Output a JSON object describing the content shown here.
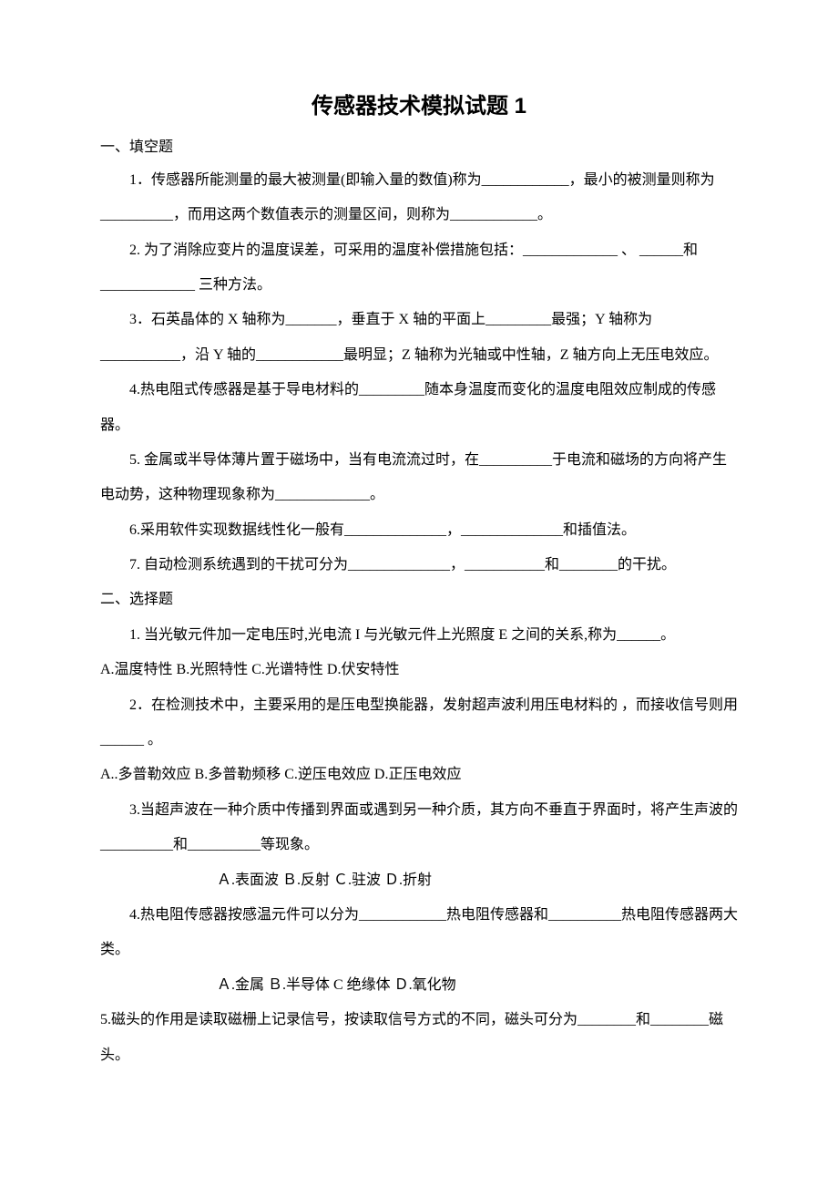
{
  "title": "传感器技术模拟试题 1",
  "sec1_head": "一、填空题",
  "q1_1": "1．传感器所能测量的最大被测量(即输入量的数值)称为____________，最小的被测量则称为__________，而用这两个数值表示的测量区间，则称为____________。",
  "q1_2": "2. 为了消除应变片的温度误差，可采用的温度补偿措施包括：_____________ 、 ______和_____________ 三种方法。",
  "q1_3": "3．石英晶体的 X 轴称为_______，垂直于 X 轴的平面上_________最强；Y 轴称为___________，沿 Y 轴的____________最明显；Z 轴称为光轴或中性轴，Z 轴方向上无压电效应。",
  "q1_4": "4.热电阻式传感器是基于导电材料的_________随本身温度而变化的温度电阻效应制成的传感器。",
  "q1_5": "5. 金属或半导体薄片置于磁场中，当有电流流过时，在__________于电流和磁场的方向将产生电动势，这种物理现象称为_____________。",
  "q1_6": "6.采用软件实现数据线性化一般有______________，______________和插值法。",
  "q1_7": "7. 自动检测系统遇到的干扰可分为______________，___________和________的干扰。",
  "sec2_head": "二、选择题",
  "q2_1": "1. 当光敏元件加一定电压时,光电流 I 与光敏元件上光照度 E 之间的关系,称为______。",
  "q2_1_opts": "A.温度特性   B.光照特性   C.光谱特性   D.伏安特性",
  "q2_2": "2．在检测技术中，主要采用的是压电型换能器，发射超声波利用压电材料的       ，而接收信号则用______ 。",
  "q2_2_opts": "A..多普勒效应   B.多普勒频移   C.逆压电效应   D.正压电效应",
  "q2_3": "3.当超声波在一种介质中传播到界面或遇到另一种介质，其方向不垂直于界面时，将产生声波的__________和__________等现象。",
  "q2_3_opts": "Ａ.表面波      Ｂ.反射     Ｃ.驻波     Ｄ.折射",
  "q2_4": "4.热电阻传感器按感温元件可以分为____________热电阻传感器和__________热电阻传感器两大类。",
  "q2_4_opts": "Ａ.金属         Ｂ.半导体       C 绝缘体       Ｄ.氧化物",
  "q2_5": "5.磁头的作用是读取磁栅上记录信号，按读取信号方式的不同，磁头可分为________和________磁头。"
}
